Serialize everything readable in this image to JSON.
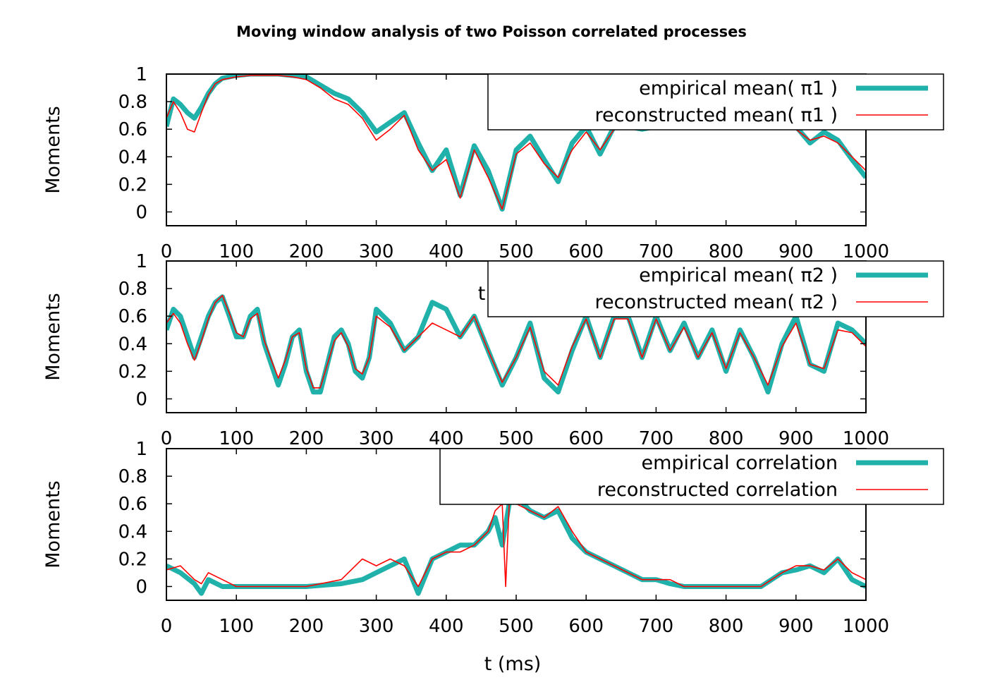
{
  "figure": {
    "title": "Moving window analysis of two Poisson correlated processes"
  },
  "chart_data": [
    {
      "type": "line",
      "ylabel": "Moments",
      "xlabel": "",
      "xlim": [
        0,
        1000
      ],
      "ylim": [
        -0.1,
        1.0
      ],
      "xticks": [
        "0",
        "100",
        "200",
        "300",
        "400",
        "500",
        "600",
        "700",
        "800",
        "900",
        "1000"
      ],
      "yticks": [
        "0",
        "0.2",
        "0.4",
        "0.6",
        "0.8",
        "1"
      ],
      "legend_position": "top-right",
      "grid": false,
      "stray_text": "",
      "series": [
        {
          "name": "empirical mean( π1 )",
          "color": "#20b2aa",
          "width": "thick",
          "x": [
            0,
            10,
            20,
            30,
            40,
            50,
            60,
            70,
            80,
            100,
            120,
            140,
            160,
            180,
            200,
            220,
            240,
            260,
            280,
            300,
            320,
            340,
            360,
            380,
            400,
            420,
            440,
            460,
            480,
            500,
            520,
            540,
            560,
            580,
            600,
            620,
            640,
            660,
            680,
            700,
            720,
            740,
            760,
            780,
            800,
            820,
            840,
            860,
            880,
            900,
            920,
            940,
            960,
            980,
            1000
          ],
          "y": [
            0.62,
            0.82,
            0.78,
            0.72,
            0.68,
            0.76,
            0.86,
            0.93,
            0.97,
            0.99,
            1.0,
            1.0,
            1.0,
            0.99,
            0.98,
            0.92,
            0.86,
            0.82,
            0.72,
            0.58,
            0.65,
            0.72,
            0.5,
            0.3,
            0.45,
            0.12,
            0.48,
            0.3,
            0.02,
            0.45,
            0.55,
            0.38,
            0.22,
            0.5,
            0.62,
            0.42,
            0.62,
            0.62,
            0.6,
            0.62,
            0.62,
            0.62,
            0.62,
            0.62,
            0.62,
            0.62,
            0.62,
            0.62,
            0.62,
            0.62,
            0.5,
            0.58,
            0.52,
            0.38,
            0.25
          ]
        },
        {
          "name": "reconstructed mean( π1 )",
          "color": "#ff0000",
          "width": "thin",
          "x": [
            0,
            10,
            20,
            30,
            40,
            50,
            60,
            70,
            80,
            100,
            120,
            140,
            160,
            180,
            200,
            220,
            240,
            260,
            280,
            300,
            320,
            340,
            360,
            380,
            400,
            420,
            440,
            460,
            480,
            500,
            520,
            540,
            560,
            580,
            600,
            620,
            640,
            660,
            680,
            700,
            720,
            740,
            760,
            780,
            800,
            820,
            840,
            860,
            880,
            900,
            920,
            940,
            960,
            980,
            1000
          ],
          "y": [
            0.68,
            0.8,
            0.72,
            0.6,
            0.58,
            0.72,
            0.85,
            0.93,
            0.96,
            0.98,
            0.99,
            0.99,
            0.99,
            0.98,
            0.96,
            0.9,
            0.82,
            0.78,
            0.68,
            0.52,
            0.6,
            0.7,
            0.45,
            0.3,
            0.38,
            0.1,
            0.45,
            0.25,
            0.02,
            0.42,
            0.5,
            0.35,
            0.25,
            0.45,
            0.58,
            0.45,
            0.6,
            0.6,
            0.6,
            0.6,
            0.6,
            0.6,
            0.6,
            0.6,
            0.6,
            0.6,
            0.6,
            0.6,
            0.6,
            0.6,
            0.52,
            0.55,
            0.5,
            0.4,
            0.3
          ]
        }
      ]
    },
    {
      "type": "line",
      "ylabel": "Moments",
      "xlabel": "",
      "xlim": [
        0,
        1000
      ],
      "ylim": [
        -0.1,
        1.0
      ],
      "xticks": [
        "0",
        "100",
        "200",
        "300",
        "400",
        "500",
        "600",
        "700",
        "800",
        "900",
        "1000"
      ],
      "yticks": [
        "0",
        "0.2",
        "0.4",
        "0.6",
        "0.8",
        "1"
      ],
      "legend_position": "top-right",
      "grid": false,
      "stray_text": "t",
      "series": [
        {
          "name": "empirical mean( π2 )",
          "color": "#20b2aa",
          "width": "thick",
          "x": [
            0,
            10,
            20,
            30,
            40,
            50,
            60,
            70,
            80,
            90,
            100,
            110,
            120,
            130,
            140,
            150,
            160,
            170,
            180,
            190,
            200,
            210,
            220,
            230,
            240,
            250,
            260,
            270,
            280,
            290,
            300,
            320,
            340,
            360,
            380,
            400,
            420,
            440,
            460,
            480,
            500,
            520,
            540,
            560,
            580,
            600,
            620,
            640,
            660,
            680,
            700,
            720,
            740,
            760,
            780,
            800,
            820,
            840,
            860,
            880,
            900,
            920,
            940,
            960,
            980,
            1000
          ],
          "y": [
            0.5,
            0.65,
            0.6,
            0.45,
            0.3,
            0.45,
            0.6,
            0.7,
            0.74,
            0.6,
            0.45,
            0.45,
            0.6,
            0.65,
            0.4,
            0.25,
            0.1,
            0.25,
            0.45,
            0.5,
            0.2,
            0.05,
            0.05,
            0.25,
            0.45,
            0.5,
            0.4,
            0.2,
            0.15,
            0.3,
            0.65,
            0.55,
            0.35,
            0.45,
            0.7,
            0.65,
            0.45,
            0.6,
            0.35,
            0.1,
            0.3,
            0.55,
            0.15,
            0.05,
            0.35,
            0.6,
            0.3,
            0.6,
            0.6,
            0.3,
            0.6,
            0.35,
            0.55,
            0.3,
            0.5,
            0.2,
            0.5,
            0.3,
            0.05,
            0.4,
            0.6,
            0.25,
            0.2,
            0.55,
            0.5,
            0.4
          ]
        },
        {
          "name": "reconstructed mean( π2 )",
          "color": "#ff0000",
          "width": "thin",
          "x": [
            0,
            10,
            20,
            30,
            40,
            50,
            60,
            70,
            80,
            90,
            100,
            110,
            120,
            130,
            140,
            150,
            160,
            170,
            180,
            190,
            200,
            210,
            220,
            230,
            240,
            250,
            260,
            270,
            280,
            290,
            300,
            320,
            340,
            360,
            380,
            400,
            420,
            440,
            460,
            480,
            500,
            520,
            540,
            560,
            580,
            600,
            620,
            640,
            660,
            680,
            700,
            720,
            740,
            760,
            780,
            800,
            820,
            840,
            860,
            880,
            900,
            920,
            940,
            960,
            980,
            1000
          ],
          "y": [
            0.55,
            0.62,
            0.55,
            0.4,
            0.28,
            0.42,
            0.58,
            0.7,
            0.75,
            0.62,
            0.48,
            0.45,
            0.58,
            0.62,
            0.42,
            0.28,
            0.15,
            0.28,
            0.45,
            0.48,
            0.22,
            0.08,
            0.08,
            0.25,
            0.42,
            0.48,
            0.38,
            0.22,
            0.18,
            0.3,
            0.6,
            0.52,
            0.35,
            0.45,
            0.55,
            0.5,
            0.45,
            0.6,
            0.35,
            0.12,
            0.3,
            0.52,
            0.2,
            0.1,
            0.38,
            0.58,
            0.3,
            0.58,
            0.58,
            0.3,
            0.58,
            0.35,
            0.52,
            0.3,
            0.48,
            0.22,
            0.48,
            0.3,
            0.1,
            0.38,
            0.55,
            0.25,
            0.22,
            0.5,
            0.48,
            0.38
          ]
        }
      ]
    },
    {
      "type": "line",
      "ylabel": "Moments",
      "xlabel": "t (ms)",
      "xlim": [
        0,
        1000
      ],
      "ylim": [
        -0.1,
        1.0
      ],
      "xticks": [
        "0",
        "100",
        "200",
        "300",
        "400",
        "500",
        "600",
        "700",
        "800",
        "900",
        "1000"
      ],
      "yticks": [
        "0",
        "0.2",
        "0.4",
        "0.6",
        "0.8",
        "1"
      ],
      "legend_position": "top-right",
      "grid": false,
      "stray_text": "",
      "series": [
        {
          "name": "empirical correlation",
          "color": "#20b2aa",
          "width": "thick",
          "x": [
            0,
            20,
            40,
            50,
            60,
            80,
            100,
            150,
            200,
            250,
            280,
            300,
            320,
            340,
            360,
            380,
            400,
            420,
            440,
            460,
            470,
            480,
            490,
            500,
            520,
            540,
            560,
            580,
            600,
            620,
            640,
            660,
            680,
            700,
            720,
            740,
            760,
            800,
            850,
            880,
            900,
            920,
            940,
            960,
            980,
            1000
          ],
          "y": [
            0.15,
            0.1,
            0.02,
            -0.05,
            0.05,
            0.0,
            0.0,
            0.0,
            0.0,
            0.02,
            0.05,
            0.1,
            0.15,
            0.2,
            -0.05,
            0.2,
            0.25,
            0.3,
            0.3,
            0.4,
            0.5,
            0.3,
            0.6,
            0.65,
            0.55,
            0.5,
            0.55,
            0.35,
            0.25,
            0.2,
            0.15,
            0.1,
            0.05,
            0.05,
            0.02,
            0.0,
            0.0,
            0.0,
            0.0,
            0.1,
            0.12,
            0.15,
            0.1,
            0.2,
            0.05,
            0.0
          ]
        },
        {
          "name": "reconstructed correlation",
          "color": "#ff0000",
          "width": "thin",
          "x": [
            0,
            20,
            40,
            50,
            60,
            80,
            100,
            150,
            200,
            250,
            280,
            300,
            320,
            340,
            360,
            380,
            400,
            420,
            440,
            460,
            470,
            480,
            485,
            490,
            495,
            500,
            520,
            540,
            560,
            580,
            600,
            620,
            640,
            660,
            680,
            700,
            720,
            740,
            760,
            800,
            850,
            880,
            900,
            920,
            940,
            960,
            980,
            1000
          ],
          "y": [
            0.12,
            0.15,
            0.05,
            0.02,
            0.1,
            0.05,
            0.0,
            0.0,
            0.0,
            0.05,
            0.2,
            0.15,
            0.2,
            0.15,
            0.0,
            0.2,
            0.25,
            0.25,
            0.3,
            0.4,
            0.55,
            0.6,
            0.0,
            0.6,
            0.6,
            0.6,
            0.55,
            0.5,
            0.58,
            0.4,
            0.25,
            0.2,
            0.15,
            0.1,
            0.05,
            0.05,
            0.05,
            0.0,
            0.0,
            0.0,
            0.0,
            0.1,
            0.15,
            0.15,
            0.12,
            0.2,
            0.1,
            0.05
          ]
        }
      ]
    }
  ]
}
